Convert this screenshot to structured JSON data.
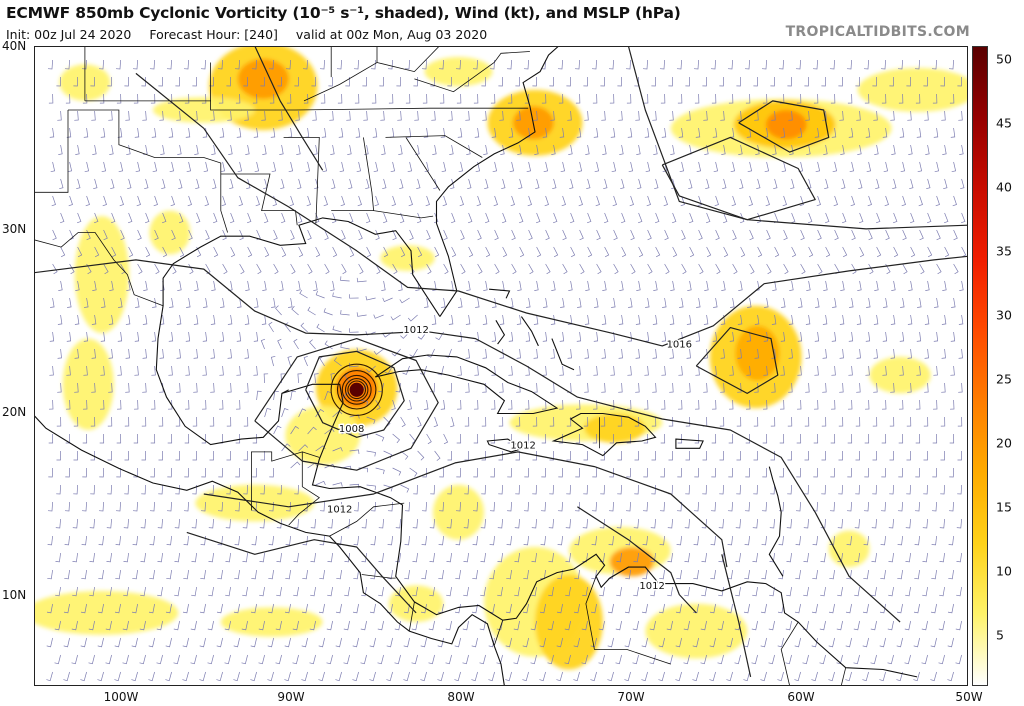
{
  "header": {
    "title": "ECMWF 850mb Cyclonic Vorticity (10⁻⁵ s⁻¹, shaded), Wind (kt), and MSLP (hPa)",
    "init": "Init: 00z Jul 24 2020",
    "forecast_hour": "Forecast Hour: [240]",
    "valid": "valid at 00z Mon, Aug 03 2020",
    "credit": "TROPICALTIDBITS.COM"
  },
  "map": {
    "lat_labels": [
      "40N",
      "30N",
      "20N",
      "10N"
    ],
    "lon_labels": [
      "100W",
      "90W",
      "80W",
      "70W",
      "60W",
      "50W"
    ],
    "ocean_color": "#ffffff",
    "coast_color": "#111111",
    "wind_barb_color": "#7c7cb0",
    "isobar_color": "#222222",
    "isobar_labels": [
      {
        "text": "1012",
        "lon": -82.5,
        "lat": 24.3
      },
      {
        "text": "1016",
        "lon": -67.0,
        "lat": 23.5
      },
      {
        "text": "1008",
        "lon": -86.3,
        "lat": 18.9
      },
      {
        "text": "1012",
        "lon": -76.2,
        "lat": 18.0
      },
      {
        "text": "1012",
        "lon": -87.0,
        "lat": 14.5
      },
      {
        "text": "1012",
        "lon": -68.6,
        "lat": 10.3
      }
    ],
    "cyclone_center": {
      "lon": -86.0,
      "lat": 21.2
    }
  },
  "colorbar": {
    "ticks": [
      "50",
      "45",
      "40",
      "35",
      "30",
      "25",
      "20",
      "15",
      "10",
      "5"
    ],
    "range": [
      1,
      51
    ],
    "colors": [
      "#ffffff",
      "#fff36a",
      "#ffd21a",
      "#ffab00",
      "#ff7d00",
      "#ff4a00",
      "#f01d00",
      "#c80c00",
      "#960000",
      "#5a0000"
    ]
  }
}
